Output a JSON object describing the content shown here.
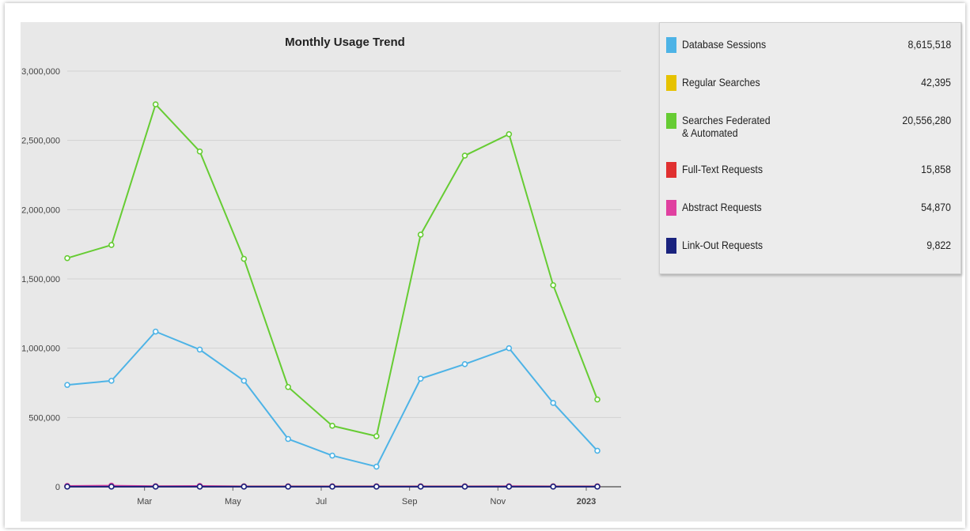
{
  "chart_data": {
    "type": "line",
    "title": "Monthly Usage Trend",
    "xlabel": "",
    "ylabel": "",
    "ylim": [
      0,
      3000000
    ],
    "y_ticks": [
      0,
      500000,
      1000000,
      1500000,
      2000000,
      2500000,
      3000000
    ],
    "y_tick_labels": [
      "0",
      "500,000",
      "1,000,000",
      "1,500,000",
      "2,000,000",
      "2,500,000",
      "3,000,000"
    ],
    "x": [
      "2022-01",
      "2022-02",
      "2022-03",
      "2022-04",
      "2022-05",
      "2022-06",
      "2022-07",
      "2022-08",
      "2022-09",
      "2022-10",
      "2022-11",
      "2022-12",
      "2023-01"
    ],
    "x_tick_labels": [
      {
        "month_index": 2,
        "label": "Mar",
        "bold": false
      },
      {
        "month_index": 4,
        "label": "May",
        "bold": false
      },
      {
        "month_index": 6,
        "label": "Jul",
        "bold": false
      },
      {
        "month_index": 8,
        "label": "Sep",
        "bold": false
      },
      {
        "month_index": 10,
        "label": "Nov",
        "bold": false
      },
      {
        "month_index": 12,
        "label": "2023",
        "bold": true
      }
    ],
    "grid": true,
    "legend_position": "top-right",
    "series": [
      {
        "name": "Database Sessions",
        "total": "8,615,518",
        "color": "#4db3e6",
        "values": [
          735000,
          765000,
          1120000,
          990000,
          765000,
          345000,
          225000,
          145000,
          780000,
          885000,
          1000000,
          605000,
          260000
        ]
      },
      {
        "name": "Regular Searches",
        "total": "42,395",
        "color": "#e6c200",
        "values": [
          3500,
          3500,
          3500,
          3500,
          3500,
          3500,
          3500,
          3500,
          3500,
          3500,
          3500,
          3500,
          3500
        ]
      },
      {
        "name": "Searches Federated\n& Automated",
        "total": "20,556,280",
        "color": "#66cc33",
        "values": [
          1650000,
          1745000,
          2760000,
          2420000,
          1645000,
          720000,
          440000,
          365000,
          1820000,
          2390000,
          2545000,
          1455000,
          630000
        ]
      },
      {
        "name": "Full-Text Requests",
        "total": "15,858",
        "color": "#e03030",
        "values": [
          1500,
          1500,
          1500,
          1500,
          1500,
          1500,
          1500,
          1500,
          1500,
          1500,
          1500,
          1500,
          1500
        ]
      },
      {
        "name": "Abstract Requests",
        "total": "54,870",
        "color": "#e040a0",
        "values": [
          6000,
          8000,
          4000,
          6000,
          3000,
          3000,
          3000,
          3000,
          3000,
          3000,
          4000,
          3000,
          3000
        ]
      },
      {
        "name": "Link-Out Requests",
        "total": "9,822",
        "color": "#1a237e",
        "values": [
          800,
          800,
          800,
          800,
          800,
          800,
          800,
          800,
          800,
          800,
          800,
          800,
          800
        ]
      }
    ]
  }
}
